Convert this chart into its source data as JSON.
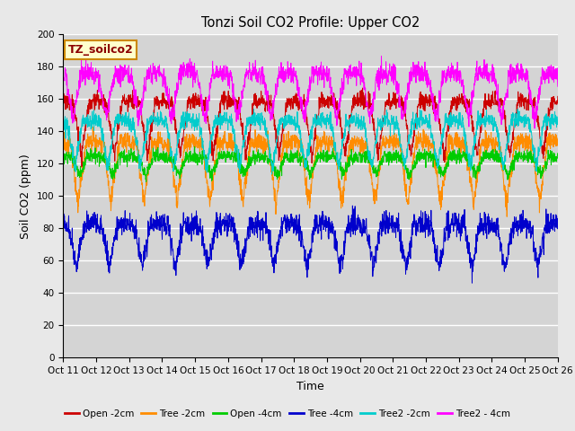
{
  "title": "Tonzi Soil CO2 Profile: Upper CO2",
  "xlabel": "Time",
  "ylabel": "Soil CO2 (ppm)",
  "legend_label": "TZ_soilco2",
  "ylim": [
    0,
    200
  ],
  "yticks": [
    0,
    20,
    40,
    60,
    80,
    100,
    120,
    140,
    160,
    180,
    200
  ],
  "series_names": [
    "Open -2cm",
    "Tree -2cm",
    "Open -4cm",
    "Tree -4cm",
    "Tree2 -2cm",
    "Tree2 - 4cm"
  ],
  "series_colors": [
    "#cc0000",
    "#ff8c00",
    "#00cc00",
    "#0000cc",
    "#00cccc",
    "#ff00ff"
  ],
  "series_params": [
    {
      "base": 153,
      "peak": 160,
      "trough": 125,
      "noise": 3,
      "phase": 0.0,
      "noise_scale": 2.5
    },
    {
      "base": 128,
      "peak": 135,
      "trough": 95,
      "noise": 4,
      "phase": 0.1,
      "noise_scale": 3.0
    },
    {
      "base": 121,
      "peak": 125,
      "trough": 113,
      "noise": 2,
      "phase": 0.05,
      "noise_scale": 2.0
    },
    {
      "base": 77,
      "peak": 84,
      "trough": 55,
      "noise": 4,
      "phase": 0.15,
      "noise_scale": 3.5
    },
    {
      "base": 138,
      "peak": 148,
      "trough": 118,
      "noise": 3,
      "phase": 0.2,
      "noise_scale": 2.5
    },
    {
      "base": 160,
      "peak": 177,
      "trough": 148,
      "noise": 4,
      "phase": 0.25,
      "noise_scale": 3.0
    }
  ],
  "n_points": 2160,
  "days": 15,
  "bg_color": "#e8e8e8",
  "plot_bg_color": "#d4d4d4",
  "grid_color": "#ffffff",
  "legend_box_facecolor": "#ffffcc",
  "legend_box_edgecolor": "#cc8800",
  "legend_text_color": "#8b0000",
  "figsize": [
    6.4,
    4.8
  ],
  "dpi": 100
}
